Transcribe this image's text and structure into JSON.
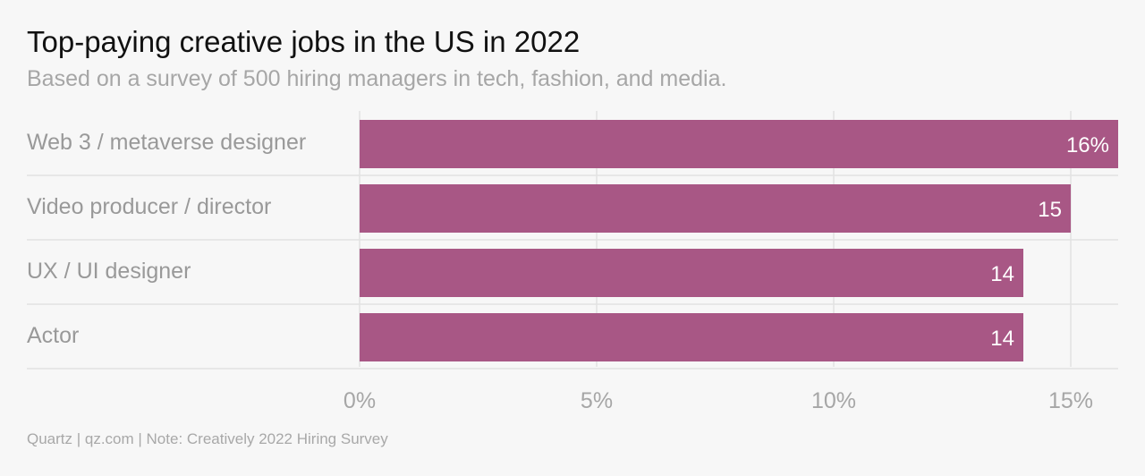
{
  "title": "Top-paying creative jobs in the US in 2022",
  "subtitle": "Based on a survey of 500 hiring managers in tech, fashion, and media.",
  "footer": "Quartz | qz.com | Note: Creatively 2022 Hiring Survey",
  "colors": {
    "bar": "#a85785",
    "grid": "#e2e2e2",
    "background": "#f7f7f7"
  },
  "chart_data": {
    "type": "bar",
    "orientation": "horizontal",
    "categories": [
      "Web 3 / metaverse designer",
      "Video producer / director",
      "UX / UI designer",
      "Actor"
    ],
    "values": [
      16,
      15,
      14,
      14
    ],
    "value_labels": [
      "16%",
      "15",
      "14",
      "14"
    ],
    "xlim": [
      0,
      16
    ],
    "ticks": [
      0,
      5,
      10,
      15
    ],
    "tick_labels": [
      "0%",
      "5%",
      "10%",
      "15%"
    ],
    "grid": true
  }
}
